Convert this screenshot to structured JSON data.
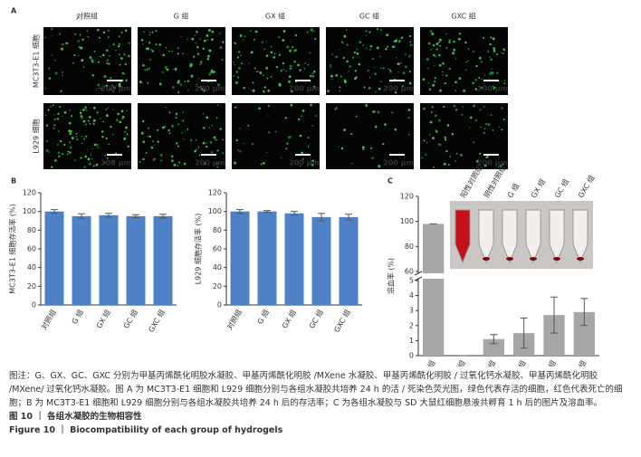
{
  "panels": [
    "A",
    "B",
    "C"
  ],
  "panel_a": {
    "columns": [
      "对照组",
      "G 组",
      "GX 组",
      "GC 组",
      "GXC 组"
    ],
    "rows": [
      "MC3T3-E1 细胞",
      "L929 细胞"
    ],
    "scale_bar": "200 μm"
  },
  "chart_data": [
    {
      "type": "bar",
      "ylabel": "MC3T3-E1 细胞存活率 (%)",
      "categories": [
        "对照组",
        "G 组",
        "GX 组",
        "GC 组",
        "GXC 组"
      ],
      "values": [
        100,
        95,
        96,
        95,
        95
      ],
      "errors": [
        2,
        2.5,
        2,
        1.5,
        2
      ],
      "color": "#4f81c6",
      "ylim": [
        0,
        120
      ],
      "yticks": [
        0,
        20,
        40,
        60,
        80,
        100,
        120
      ]
    },
    {
      "type": "bar",
      "ylabel": "L929 细胞存活率 (%)",
      "categories": [
        "对照组",
        "G 组",
        "GX 组",
        "GC 组",
        "GXC 组"
      ],
      "values": [
        100,
        100,
        98,
        94,
        94
      ],
      "errors": [
        2,
        1,
        2,
        4,
        3
      ],
      "color": "#4f81c6",
      "ylim": [
        0,
        120
      ],
      "yticks": [
        0,
        20,
        40,
        60,
        80,
        100,
        120
      ]
    },
    {
      "type": "bar",
      "ylabel": "溶血率 (%)",
      "categories": [
        "阳性对照组",
        "阴性对照组",
        "G 组",
        "GX 组",
        "GC 组",
        "GXC 组"
      ],
      "values": [
        98,
        0,
        1.1,
        1.5,
        2.7,
        2.9
      ],
      "errors": [
        0,
        0,
        0.3,
        1,
        1.2,
        0.9
      ],
      "color": "#a6a6a6",
      "ylim": [
        0,
        120
      ],
      "ybreak": [
        5,
        60
      ],
      "yticks": [
        0,
        1,
        2,
        3,
        4,
        5,
        60,
        80,
        100,
        120
      ]
    }
  ],
  "caption": {
    "note": "图注：G、GX、GC、GXC 分别为甲基丙烯酰化明胶水凝胶、甲基丙烯酰化明胶 /MXene 水凝胶、甲基丙烯酰化明胶 / 过氧化钙水凝胶、甲基丙烯酰化明胶 /MXene/ 过氧化钙水凝胶。图 A 为 MC3T3-E1 细胞和 L929 细胞分别与各组水凝胶共培养 24 h 的活 / 死染色荧光图，绿色代表存活的细胞，红色代表死亡的细胞；B 为 MC3T3-E1 细胞和 L929 细胞分别与各组水凝胶共培养 24 h 后的存活率；C 为各组水凝胶与 SD 大鼠红细胞悬液共孵育 1 h 后的图片及溶血率。",
    "title_zh": "图 10 ｜ 各组水凝胶的生物相容性",
    "title_en": "Figure 10 ｜ Biocompatibility of each group of hydrogels"
  }
}
